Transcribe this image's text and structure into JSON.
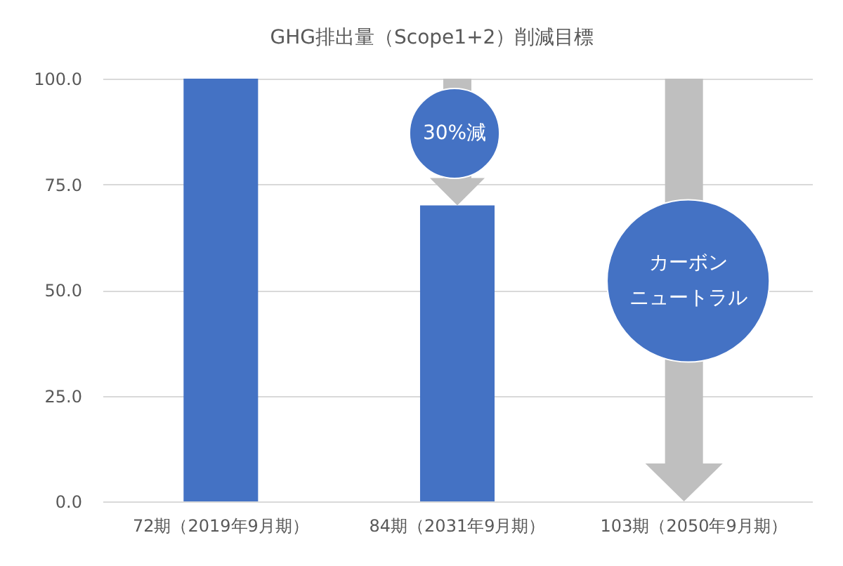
{
  "chart_data": {
    "type": "bar",
    "title": "GHG排出量（Scope1+2）削減目標",
    "categories": [
      "72期（2019年9月期）",
      "84期（2031年9月期）",
      "103期（2050年9月期）"
    ],
    "values": [
      100,
      70,
      null
    ],
    "color": "#4472c4",
    "ylim": [
      0,
      100
    ],
    "yticks": [
      {
        "value": 0,
        "label": "0.0"
      },
      {
        "value": 25,
        "label": "25.0"
      },
      {
        "value": 50,
        "label": "50.0"
      },
      {
        "value": 75,
        "label": "75.0"
      },
      {
        "value": 100,
        "label": "100.0"
      }
    ],
    "grid": "y",
    "annotations": [
      "30%減",
      "カーボンニュートラル"
    ]
  }
}
